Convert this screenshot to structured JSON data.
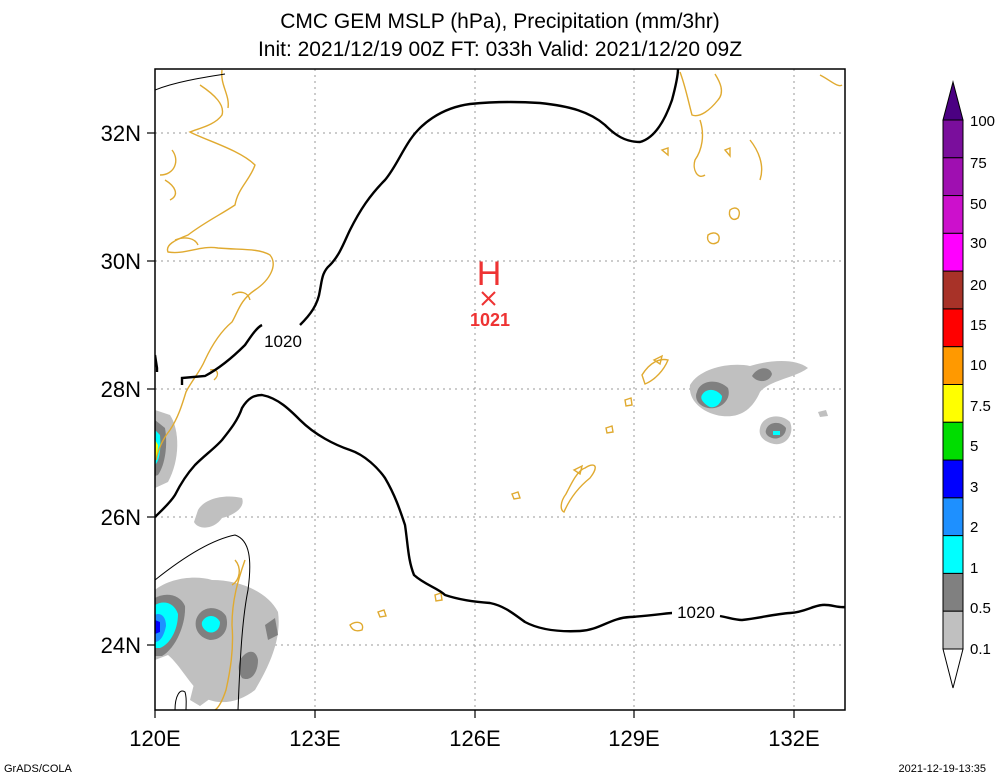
{
  "title": {
    "line1": "CMC GEM MSLP (hPa), Precipitation (mm/3hr)",
    "line2": "Init: 2021/12/19 00Z  FT: 033h  Valid: 2021/12/20 09Z"
  },
  "axes": {
    "x_ticks": [
      "120E",
      "123E",
      "126E",
      "129E",
      "132E"
    ],
    "y_ticks": [
      "32N",
      "30N",
      "28N",
      "26N",
      "24N"
    ],
    "lon_range": [
      120,
      133
    ],
    "lat_range": [
      23,
      33
    ]
  },
  "pressure": {
    "high_label": "H",
    "high_value": "1021",
    "contour_label_1": "1020",
    "contour_label_2": "1020"
  },
  "colorbar": {
    "labels": [
      "100",
      "75",
      "50",
      "30",
      "20",
      "15",
      "10",
      "7.5",
      "5",
      "3",
      "2",
      "1",
      "0.5",
      "0.1"
    ],
    "colors": [
      "#7a0e9c",
      "#9f0fb1",
      "#cc10cc",
      "#ff00ff",
      "#a83228",
      "#ff0000",
      "#ff9900",
      "#ffff00",
      "#00dd00",
      "#0000ff",
      "#1e90ff",
      "#00ffff",
      "#808080",
      "#c0c0c0"
    ]
  },
  "footer": {
    "left": "GrADS/COLA",
    "right": "2021-12-19-13:35"
  }
}
